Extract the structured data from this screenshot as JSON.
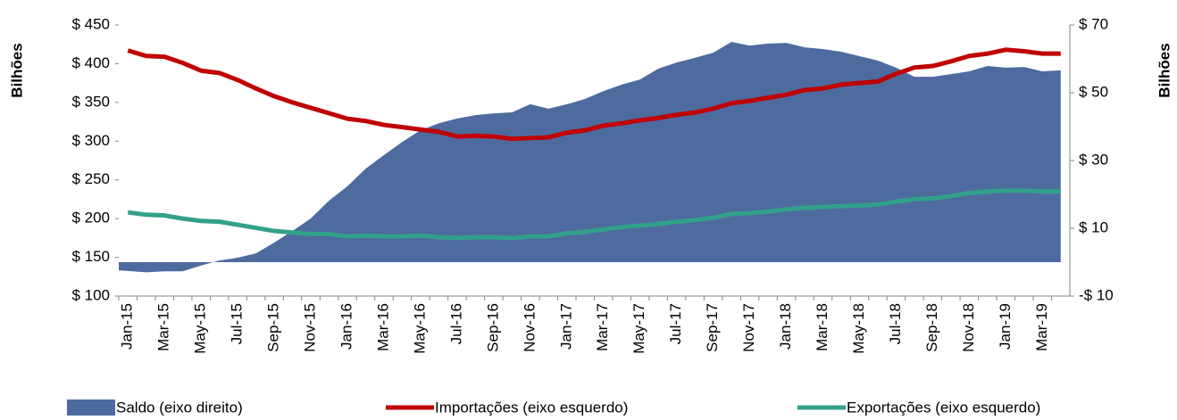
{
  "chart_data": {
    "type": "line",
    "y_label": "Bilhões",
    "y2_label": "Bilhões",
    "categories": [
      "Jan-15",
      null,
      "Mar-15",
      null,
      "May-15",
      null,
      "Jul-15",
      null,
      "Sep-15",
      null,
      "Nov-15",
      null,
      "Jan-16",
      null,
      "Mar-16",
      null,
      "May-16",
      null,
      "Jul-16",
      null,
      "Sep-16",
      null,
      "Nov-16",
      null,
      "Jan-17",
      null,
      "Mar-17",
      null,
      "May-17",
      null,
      "Jul-17",
      null,
      "Sep-17",
      null,
      "Nov-17",
      null,
      "Jan-18",
      null,
      "Mar-18",
      null,
      "May-18",
      null,
      "Jul-18",
      null,
      "Sep-18",
      null,
      "Nov-18",
      null,
      "Jan-19",
      null,
      "Mar-19",
      null
    ],
    "series": [
      {
        "name": "Saldo (eixo direito)",
        "type": "area",
        "axis": "y2",
        "color": "#4e6b9f",
        "values": [
          -2.4,
          -3,
          -2.7,
          -2.7,
          -1,
          0.5,
          1.3,
          2.6,
          5.8,
          9.2,
          12.9,
          18.2,
          22.4,
          27.6,
          31.6,
          35.5,
          38.9,
          41,
          42.4,
          43.4,
          43.9,
          44.2,
          46.6,
          45.3,
          46.6,
          48.2,
          50.5,
          52.4,
          53.9,
          57.1,
          58.9,
          60.3,
          61.8,
          65,
          63.9,
          64.5,
          64.7,
          63.4,
          62.9,
          62.1,
          60.8,
          59.5,
          57.4,
          54.7,
          54.7,
          55.5,
          56.3,
          57.9,
          57.4,
          57.6,
          56.3,
          56.6
        ]
      },
      {
        "name": "Importações (eixo esquerdo)",
        "type": "line",
        "color": "#c00000",
        "values": [
          417,
          410,
          409,
          401,
          391,
          388,
          379,
          368,
          358,
          350,
          343,
          336,
          329,
          326,
          321,
          318,
          315,
          312,
          306,
          307,
          306,
          303,
          304,
          305,
          311,
          314,
          320,
          323,
          327,
          330,
          334,
          337,
          342,
          349,
          352,
          356,
          360,
          366,
          368,
          373,
          375,
          377,
          387,
          395,
          397,
          403,
          410,
          413,
          418,
          416,
          413,
          413
        ]
      },
      {
        "name": "Exportações (eixo esquerdo)",
        "type": "line",
        "color": "#33a08a",
        "values": [
          208,
          205,
          204,
          200,
          197,
          196,
          192,
          188,
          184,
          182,
          180,
          180,
          177,
          178,
          177,
          177,
          178,
          176,
          175,
          176,
          176,
          175,
          177,
          177,
          181,
          183,
          186,
          189,
          191,
          193,
          196,
          198,
          201,
          206,
          207,
          209,
          212,
          214,
          215,
          216,
          217,
          218,
          222,
          225,
          226,
          229,
          233,
          235,
          236,
          236,
          235,
          235
        ]
      }
    ],
    "ylim": [
      100,
      450
    ],
    "yticks": [
      {
        "value": 100,
        "label": "$ 100"
      },
      {
        "value": 150,
        "label": "$ 150"
      },
      {
        "value": 200,
        "label": "$ 200"
      },
      {
        "value": 250,
        "label": "$ 250"
      },
      {
        "value": 300,
        "label": "$ 300"
      },
      {
        "value": 350,
        "label": "$ 350"
      },
      {
        "value": 400,
        "label": "$ 400"
      },
      {
        "value": 450,
        "label": "$ 450"
      }
    ],
    "y2lim": [
      -10,
      70
    ],
    "y2ticks": [
      {
        "value": -10,
        "label": "-$ 10"
      },
      {
        "value": 10,
        "label": "$ 10"
      },
      {
        "value": 30,
        "label": "$ 30"
      },
      {
        "value": 50,
        "label": "$ 50"
      },
      {
        "value": 70,
        "label": "$ 70"
      }
    ],
    "grid": false,
    "legend": "bottom"
  }
}
